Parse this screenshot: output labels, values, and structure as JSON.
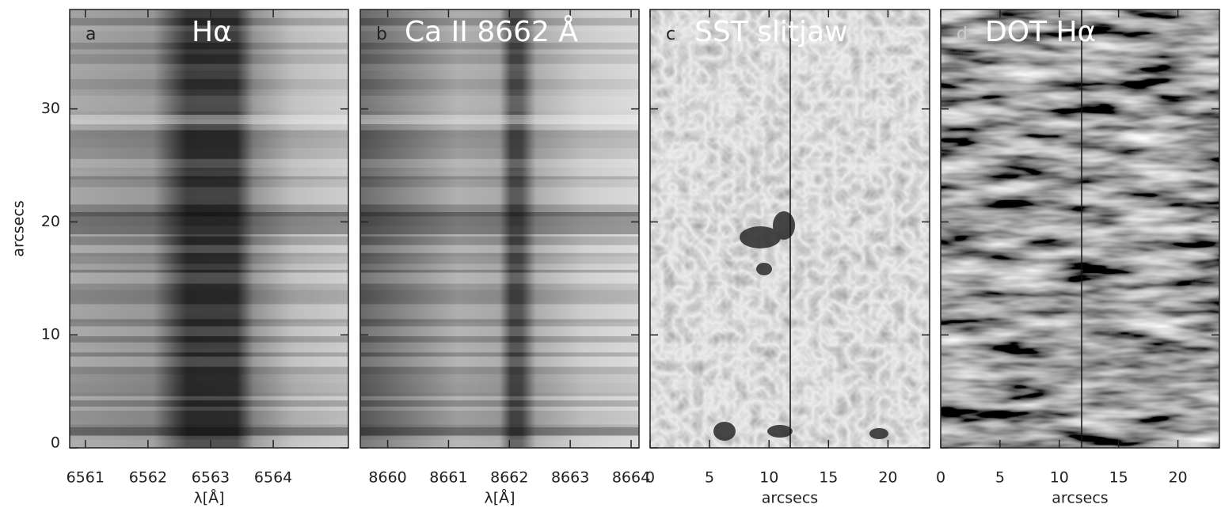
{
  "chart_data": [
    {
      "type": "image",
      "panel_label": "a",
      "title": "Hα",
      "xlabel": "λ[Å]",
      "ylabel": "arcsecs",
      "xlim": [
        6560.75,
        6565.2
      ],
      "xticks": [
        6561,
        6562,
        6563,
        6564
      ],
      "ylim": [
        0,
        38.8
      ],
      "yticks": [
        0,
        10,
        20,
        30
      ]
    },
    {
      "type": "image",
      "panel_label": "b",
      "title": "Ca II 8662 Å",
      "xlabel": "λ[Å]",
      "xlim": [
        8659.55,
        8664.13
      ],
      "xticks": [
        8660,
        8661,
        8662,
        8663,
        8664
      ]
    },
    {
      "type": "image",
      "panel_label": "c",
      "title": "SST slitjaw",
      "xlabel": "arcsecs",
      "xlim": [
        0,
        23.5
      ],
      "xticks": [
        0,
        5,
        10,
        15,
        20
      ]
    },
    {
      "type": "image",
      "panel_label": "d",
      "title": "DOT Hα",
      "xlabel": "arcsecs",
      "xlim": [
        0,
        23.5
      ],
      "xticks": [
        0,
        5,
        10,
        15,
        20
      ]
    }
  ]
}
